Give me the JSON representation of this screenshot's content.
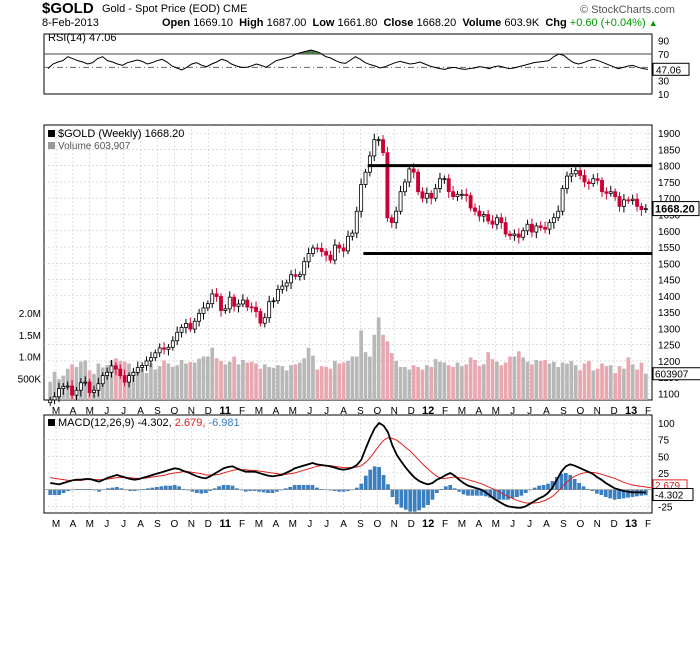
{
  "header": {
    "symbol": "$GOLD",
    "description": "Gold - Spot Price (EOD)",
    "exchange": "CME",
    "date": "8-Feb-2013",
    "open_label": "Open",
    "open": "1669.10",
    "high_label": "High",
    "high": "1687.00",
    "low_label": "Low",
    "low": "1661.80",
    "close_label": "Close",
    "close": "1668.20",
    "volume_label": "Volume",
    "volume": "603.9K",
    "chg_label": "Chg",
    "chg": "+0.60 (+0.04%)",
    "brand": "© StockCharts.com"
  },
  "colors": {
    "up": "#000000",
    "down": "#cc0033",
    "vol_up": "#b8b8b8",
    "vol_down": "#e8a8b0",
    "macd_line": "#000000",
    "signal_line": "#e02020",
    "histogram": "#3a7fc0",
    "rsi_fill": "#4a7a4a",
    "grid": "#c8c8c8"
  },
  "chart_data": [
    {
      "type": "line",
      "title": "RSI(14) 47.06",
      "label": "RSI(14)",
      "value_label": "47.06",
      "ylim": [
        10,
        100
      ],
      "y_ticks": [
        90,
        70,
        50,
        30,
        10
      ],
      "last_value_box": "47.06",
      "overbought": 70,
      "oversold": 30,
      "series": [
        {
          "values": [
            48,
            55,
            58,
            60,
            66,
            63,
            60,
            58,
            55,
            57,
            63,
            66,
            60,
            58,
            55,
            53,
            57,
            59,
            61,
            59,
            55,
            57,
            60,
            62,
            58,
            52,
            49,
            46,
            50,
            55,
            57,
            53,
            51,
            55,
            58,
            62,
            60,
            55,
            52,
            50,
            50,
            52,
            55,
            53,
            50,
            55,
            60,
            62,
            64,
            66,
            70,
            72,
            74,
            76,
            74,
            71,
            66,
            64,
            60,
            57,
            56,
            61,
            66,
            62,
            57,
            54,
            52,
            49,
            51,
            54,
            57,
            59,
            57,
            55,
            56,
            58,
            55,
            52,
            50,
            48,
            47,
            49,
            50,
            48,
            47,
            48,
            49,
            51,
            50,
            48,
            51,
            52,
            50,
            48,
            49,
            51,
            53,
            55,
            57,
            58,
            59,
            60,
            66,
            70,
            68,
            62,
            57,
            55,
            57,
            60,
            62,
            60,
            57,
            54,
            51,
            48,
            50,
            52,
            53,
            50,
            48,
            47
          ]
        }
      ]
    },
    {
      "type": "candlestick",
      "title": "$GOLD (Weekly) 1668.20",
      "label": "$GOLD (Weekly)",
      "value_label": "1668.20",
      "volume_legend": "Volume 603,907",
      "ylim": [
        1080,
        1925
      ],
      "y_ticks": [
        1900,
        1850,
        1800,
        1750,
        1700,
        1650,
        1600,
        1550,
        1500,
        1450,
        1400,
        1350,
        1300,
        1250,
        1200,
        1150,
        1100
      ],
      "last_price_box": "1668.20",
      "volume_ticks": [
        "2.0M",
        "1.5M",
        "1.0M",
        "500K"
      ],
      "last_volume_box": "603907",
      "resistance": 1800,
      "support": 1530,
      "close": [
        1080,
        1090,
        1115,
        1122,
        1123,
        1095,
        1110,
        1133,
        1135,
        1103,
        1110,
        1130,
        1155,
        1165,
        1185,
        1175,
        1155,
        1135,
        1155,
        1165,
        1180,
        1186,
        1200,
        1210,
        1225,
        1240,
        1236,
        1242,
        1262,
        1288,
        1303,
        1315,
        1298,
        1322,
        1346,
        1363,
        1376,
        1406,
        1398,
        1355,
        1360,
        1396,
        1368,
        1375,
        1387,
        1366,
        1365,
        1352,
        1316,
        1333,
        1382,
        1385,
        1420,
        1430,
        1440,
        1465,
        1460,
        1465,
        1505,
        1530,
        1547,
        1546,
        1536,
        1525,
        1510,
        1556,
        1547,
        1538,
        1583,
        1593,
        1660,
        1742,
        1780,
        1830,
        1880,
        1880,
        1840,
        1640,
        1625,
        1660,
        1720,
        1750,
        1790,
        1780,
        1720,
        1700,
        1715,
        1700,
        1730,
        1760,
        1760,
        1720,
        1705,
        1712,
        1712,
        1708,
        1670,
        1660,
        1645,
        1650,
        1630,
        1620,
        1640,
        1625,
        1590,
        1585,
        1590,
        1580,
        1600,
        1620,
        1596,
        1615,
        1610,
        1605,
        1625,
        1640,
        1660,
        1730,
        1768,
        1775,
        1785,
        1770,
        1750,
        1745,
        1760,
        1755,
        1720,
        1715,
        1720,
        1705,
        1675,
        1695,
        1693,
        1697,
        1675,
        1665,
        1668
      ],
      "volume": [
        420000,
        650000,
        480000,
        560000,
        720000,
        820000,
        760000,
        880000,
        910000,
        680000,
        600000,
        840000,
        750000,
        800000,
        910000,
        960000,
        900000,
        880000,
        840000,
        660000,
        680000,
        720000,
        620000,
        840000,
        700000,
        780000,
        910000,
        840000,
        760000,
        800000,
        920000,
        840000,
        870000,
        860000,
        950000,
        1000000,
        1000000,
        1200000,
        960000,
        900000,
        820000,
        880000,
        1000000,
        820000,
        920000,
        860000,
        880000,
        840000,
        720000,
        820000,
        760000,
        740000,
        800000,
        780000,
        680000,
        800000,
        820000,
        860000,
        960000,
        1200000,
        1020000,
        700000,
        780000,
        760000,
        720000,
        900000,
        840000,
        860000,
        900000,
        1000000,
        1000000,
        1600000,
        1100000,
        1000000,
        1500000,
        1900000,
        1500000,
        1350000,
        1080000,
        900000,
        760000,
        760000,
        700000,
        800000,
        760000,
        700000,
        800000,
        760000,
        940000,
        880000,
        860000,
        800000,
        760000,
        860000,
        780000,
        820000,
        980000,
        920000,
        780000,
        820000,
        1100000,
        940000,
        880000,
        800000,
        860000,
        1000000,
        1000000,
        1120000,
        980000,
        880000,
        820000,
        920000,
        900000,
        920000,
        840000,
        880000,
        760000,
        860000,
        840000,
        900000,
        800000,
        680000,
        840000,
        900000,
        680000,
        720000,
        840000,
        780000,
        800000,
        620000,
        780000,
        720000,
        980000,
        820000,
        700000,
        860000,
        603907
      ]
    },
    {
      "type": "line",
      "title": "MACD(12,26,9) -4.302, 2.679, -6.981",
      "label": "MACD(12,26,9)",
      "macd_value": "-4.302",
      "signal_value": "2.679",
      "hist_value": "-6.981",
      "ylim": [
        -35,
        112
      ],
      "y_ticks": [
        100,
        75,
        50,
        25,
        0,
        -25
      ],
      "macd_box": "-4.302",
      "signal_box": "2.679",
      "series": [
        {
          "name": "MACD",
          "values": [
            10,
            9,
            8,
            10,
            12,
            14,
            15,
            15,
            16,
            16,
            14,
            12,
            15,
            18,
            20,
            22,
            20,
            18,
            16,
            15,
            16,
            18,
            20,
            22,
            24,
            26,
            28,
            30,
            32,
            31,
            28,
            26,
            23,
            20,
            18,
            17,
            20,
            24,
            28,
            32,
            34,
            35,
            32,
            29,
            27,
            27,
            27,
            25,
            23,
            21,
            20,
            21,
            22,
            25,
            28,
            32,
            34,
            36,
            38,
            40,
            38,
            37,
            36,
            35,
            33,
            31,
            30,
            31,
            33,
            37,
            45,
            62,
            78,
            92,
            100,
            96,
            86,
            66,
            52,
            42,
            33,
            25,
            18,
            13,
            10,
            8,
            10,
            15,
            18,
            22,
            25,
            21,
            15,
            10,
            6,
            4,
            2,
            0,
            -4,
            -9,
            -14,
            -18,
            -22,
            -25,
            -26,
            -27,
            -27,
            -25,
            -21,
            -17,
            -13,
            -10,
            -5,
            3,
            15,
            27,
            35,
            38,
            36,
            33,
            30,
            27,
            24,
            19,
            15,
            10,
            6,
            2,
            0,
            -2,
            -3,
            -4,
            -4,
            -4,
            -4.3
          ]
        },
        {
          "name": "Signal",
          "values": [
            18,
            17,
            16,
            15,
            14,
            14,
            14,
            14,
            15,
            15,
            15,
            15,
            15,
            16,
            17,
            18,
            18,
            18,
            18,
            17,
            17,
            17,
            18,
            19,
            20,
            21,
            22,
            24,
            25,
            26,
            27,
            27,
            26,
            25,
            24,
            22,
            22,
            22,
            23,
            25,
            27,
            29,
            30,
            30,
            30,
            29,
            29,
            28,
            27,
            26,
            25,
            24,
            23,
            23,
            24,
            25,
            27,
            29,
            31,
            33,
            35,
            36,
            36,
            36,
            35,
            34,
            33,
            33,
            33,
            34,
            36,
            41,
            48,
            57,
            66,
            74,
            78,
            77,
            74,
            69,
            63,
            58,
            51,
            44,
            37,
            31,
            25,
            20,
            17,
            17,
            18,
            19,
            18,
            17,
            15,
            13,
            11,
            9,
            6,
            3,
            0,
            -3,
            -7,
            -10,
            -13,
            -16,
            -18,
            -20,
            -20,
            -20,
            -19,
            -17,
            -14,
            -10,
            -4,
            3,
            10,
            16,
            20,
            23,
            25,
            26,
            26,
            25,
            23,
            21,
            19,
            17,
            14,
            11,
            9,
            7,
            6,
            5,
            4,
            3,
            2.7
          ]
        }
      ]
    }
  ],
  "price_x_labels": [
    "M",
    "A",
    "M",
    "J",
    "J",
    "A",
    "S",
    "O",
    "N",
    "D",
    "11",
    "F",
    "M",
    "A",
    "M",
    "J",
    "J",
    "A",
    "S",
    "O",
    "N",
    "D",
    "12",
    "F",
    "M",
    "A",
    "M",
    "J",
    "J",
    "A",
    "S",
    "O",
    "N",
    "D",
    "13",
    "F"
  ],
  "macd_x_labels": [
    "M",
    "A",
    "M",
    "J",
    "J",
    "A",
    "S",
    "O",
    "N",
    "D",
    "11",
    "F",
    "M",
    "A",
    "M",
    "J",
    "J",
    "A",
    "S",
    "O",
    "N",
    "D",
    "12",
    "F",
    "M",
    "A",
    "M",
    "J",
    "J",
    "A",
    "S",
    "O",
    "N",
    "D",
    "13",
    "F"
  ]
}
